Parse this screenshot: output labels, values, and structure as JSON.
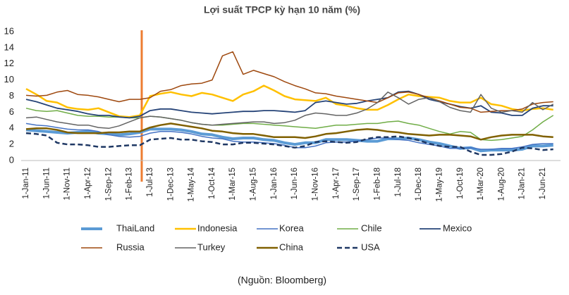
{
  "chart_data": {
    "type": "line",
    "title": "Lợi suất TPCP kỳ hạn 10 năm (%)",
    "source": "(Nguồn: Bloomberg)",
    "categories": [
      "1-Jan-11",
      null,
      "1-Jun-11",
      null,
      "1-Nov-11",
      null,
      "1-Apr-12",
      null,
      "1-Sep-12",
      null,
      "1-Feb-13",
      null,
      "1-Jul-13",
      null,
      "1-Dec-13",
      null,
      "1-May-14",
      null,
      "1-Oct-14",
      null,
      "1-Mar-15",
      null,
      "1-Aug-15",
      null,
      "1-Jan-16",
      null,
      "1-Jun-16",
      null,
      "1-Nov-16",
      null,
      "1-Apr-17",
      null,
      "1-Sep-17",
      null,
      "1-Feb-18",
      null,
      "1-Jul-18",
      null,
      "1-Dec-18",
      null,
      "1-May-19",
      null,
      "1-Oct-19",
      null,
      "1-Mar-20",
      null,
      "1-Aug-20",
      null,
      "1-Jan-21",
      null,
      "1-Jun-21",
      null
    ],
    "ylim": [
      0,
      16
    ],
    "yticks": [
      0,
      2,
      4,
      6,
      8,
      10,
      12,
      14,
      16
    ],
    "grid": false,
    "legend": "bottom",
    "series": [
      {
        "name": "ThaiLand",
        "color": "#5b9bd5",
        "line_width": 4,
        "values": [
          3.8,
          3.7,
          3.6,
          3.5,
          3.4,
          3.5,
          3.6,
          3.4,
          3.3,
          3.2,
          3.3,
          3.5,
          3.9,
          3.9,
          3.9,
          3.8,
          3.6,
          3.3,
          3.2,
          2.9,
          2.7,
          2.8,
          2.8,
          2.6,
          2.5,
          2.2,
          2.0,
          2.2,
          2.2,
          2.6,
          2.6,
          2.6,
          2.5,
          2.4,
          2.4,
          2.7,
          2.7,
          2.8,
          2.6,
          2.3,
          2.1,
          1.8,
          1.5,
          1.6,
          1.2,
          1.3,
          1.3,
          1.3,
          1.4,
          1.8,
          1.8,
          1.9
        ]
      },
      {
        "name": "Indonesia",
        "color": "#ffc000",
        "line_width": 2.5,
        "values": [
          8.9,
          8.2,
          7.4,
          7.2,
          6.6,
          6.4,
          6.3,
          6.5,
          6.0,
          5.5,
          5.4,
          5.6,
          8.0,
          8.3,
          8.5,
          8.2,
          8.0,
          8.4,
          8.2,
          7.8,
          7.4,
          8.2,
          8.6,
          9.3,
          8.7,
          8.0,
          7.6,
          7.5,
          7.4,
          7.8,
          7.0,
          6.8,
          6.5,
          6.3,
          6.3,
          6.9,
          7.6,
          8.2,
          8.0,
          7.9,
          7.8,
          7.4,
          7.2,
          7.2,
          7.8,
          7.0,
          6.8,
          6.4,
          6.2,
          6.4,
          6.5,
          6.3
        ]
      },
      {
        "name": "Korea",
        "color": "#4472c4",
        "line_width": 1.5,
        "values": [
          4.6,
          4.4,
          4.3,
          4.1,
          3.9,
          3.8,
          3.8,
          3.6,
          3.2,
          3.0,
          2.9,
          3.0,
          3.4,
          3.6,
          3.6,
          3.5,
          3.3,
          3.0,
          2.8,
          2.7,
          2.4,
          2.3,
          2.3,
          2.2,
          2.1,
          1.9,
          1.6,
          1.6,
          1.8,
          2.2,
          2.3,
          2.3,
          2.4,
          2.6,
          2.8,
          2.8,
          2.6,
          2.5,
          2.2,
          2.0,
          1.8,
          1.5,
          1.5,
          1.6,
          1.4,
          1.4,
          1.5,
          1.5,
          1.7,
          2.0,
          2.1,
          2.1
        ]
      },
      {
        "name": "Chile",
        "color": "#70ad47",
        "line_width": 1.5,
        "values": [
          6.5,
          6.2,
          6.1,
          6.2,
          5.9,
          5.6,
          5.5,
          5.5,
          5.4,
          5.4,
          5.3,
          5.3,
          5.5,
          5.4,
          5.2,
          5.0,
          4.7,
          4.5,
          4.4,
          4.4,
          4.5,
          4.6,
          4.6,
          4.5,
          4.4,
          4.3,
          4.2,
          4.1,
          4.0,
          4.2,
          4.4,
          4.4,
          4.5,
          4.6,
          4.6,
          4.8,
          4.9,
          4.6,
          4.4,
          4.0,
          3.6,
          3.3,
          3.6,
          3.5,
          2.6,
          2.5,
          2.6,
          2.8,
          3.0,
          3.8,
          4.8,
          5.6
        ]
      },
      {
        "name": "Mexico",
        "color": "#264478",
        "line_width": 1.8,
        "values": [
          7.6,
          7.3,
          6.9,
          6.5,
          6.3,
          6.1,
          5.8,
          5.6,
          5.6,
          5.4,
          5.3,
          5.5,
          6.2,
          6.4,
          6.4,
          6.2,
          6.0,
          5.9,
          5.8,
          5.9,
          6.0,
          6.1,
          6.1,
          6.2,
          6.2,
          6.1,
          6.0,
          6.2,
          7.2,
          7.4,
          7.2,
          7.0,
          7.1,
          7.4,
          7.6,
          7.8,
          8.5,
          8.6,
          8.2,
          7.6,
          7.3,
          7.0,
          6.7,
          6.5,
          6.8,
          6.0,
          5.9,
          5.6,
          5.6,
          6.5,
          6.8,
          6.8
        ]
      },
      {
        "name": "Russia",
        "color": "#9e480e",
        "line_width": 1.5,
        "values": [
          8.1,
          8.0,
          8.1,
          8.5,
          8.7,
          8.2,
          8.1,
          7.9,
          7.6,
          7.3,
          7.6,
          7.6,
          7.8,
          8.6,
          8.8,
          9.3,
          9.5,
          9.6,
          10.0,
          13.0,
          13.5,
          10.7,
          11.2,
          10.8,
          10.4,
          9.8,
          9.3,
          8.9,
          8.4,
          8.3,
          8.0,
          7.8,
          7.6,
          7.4,
          7.2,
          7.8,
          8.4,
          8.5,
          8.2,
          7.8,
          7.4,
          7.0,
          6.6,
          6.5,
          6.0,
          6.1,
          6.2,
          6.2,
          6.4,
          7.0,
          7.2,
          7.3
        ]
      },
      {
        "name": "Turkey",
        "color": "#636363",
        "line_width": 1.5,
        "values": [
          5.3,
          5.4,
          5.1,
          4.8,
          4.6,
          4.4,
          4.4,
          4.1,
          4.0,
          4.3,
          4.8,
          5.3,
          5.5,
          5.4,
          5.2,
          5.0,
          4.7,
          4.5,
          4.4,
          4.5,
          4.6,
          4.7,
          4.8,
          4.8,
          4.6,
          4.7,
          5.0,
          5.6,
          5.9,
          5.8,
          5.6,
          5.6,
          5.9,
          6.4,
          7.2,
          8.5,
          7.8,
          7.0,
          7.6,
          7.8,
          7.3,
          6.6,
          6.2,
          6.0,
          8.2,
          6.5,
          6.0,
          6.2,
          6.0,
          7.2,
          6.3,
          7.0
        ]
      },
      {
        "name": "China",
        "color": "#806000",
        "line_width": 2.5,
        "values": [
          3.9,
          4.0,
          4.0,
          3.8,
          3.5,
          3.4,
          3.4,
          3.4,
          3.5,
          3.5,
          3.6,
          3.6,
          4.1,
          4.4,
          4.6,
          4.4,
          4.2,
          4.0,
          3.7,
          3.6,
          3.4,
          3.3,
          3.3,
          3.1,
          2.9,
          2.9,
          2.9,
          2.8,
          3.0,
          3.3,
          3.4,
          3.6,
          3.8,
          3.9,
          3.8,
          3.6,
          3.5,
          3.3,
          3.2,
          3.1,
          3.2,
          3.2,
          3.1,
          3.0,
          2.6,
          2.9,
          3.1,
          3.2,
          3.2,
          3.2,
          3.0,
          2.9
        ]
      },
      {
        "name": "USA",
        "color": "#1f3864",
        "line_width": 2.5,
        "dashed": true,
        "values": [
          3.4,
          3.3,
          3.1,
          2.2,
          2.0,
          2.0,
          1.9,
          1.7,
          1.7,
          1.8,
          1.9,
          1.9,
          2.6,
          2.7,
          2.8,
          2.6,
          2.6,
          2.4,
          2.3,
          2.0,
          2.0,
          2.2,
          2.2,
          2.1,
          2.0,
          1.8,
          1.6,
          1.8,
          2.3,
          2.4,
          2.3,
          2.2,
          2.3,
          2.7,
          2.9,
          2.9,
          3.0,
          2.8,
          2.5,
          2.1,
          1.8,
          1.7,
          1.7,
          1.1,
          0.7,
          0.7,
          0.8,
          1.1,
          1.6,
          1.5,
          1.3,
          1.4
        ]
      }
    ]
  }
}
